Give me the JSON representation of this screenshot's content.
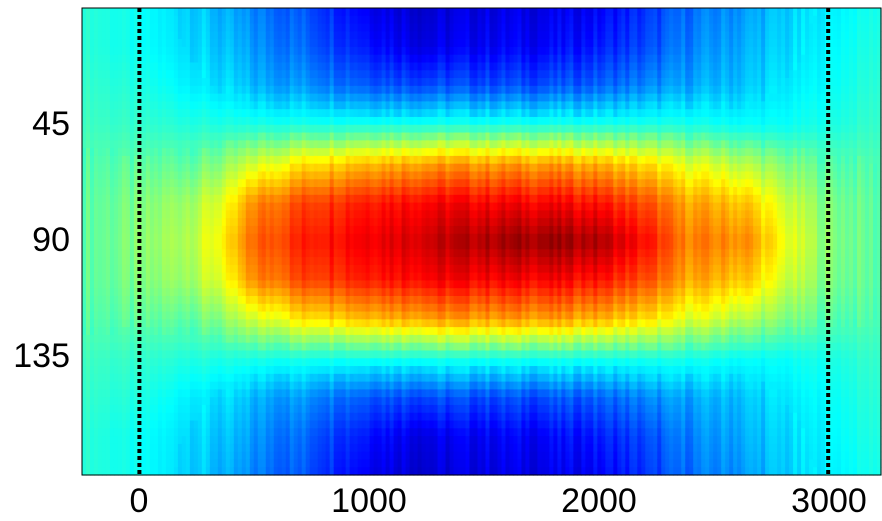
{
  "chart_data": {
    "type": "heatmap",
    "title": "",
    "xlabel": "",
    "ylabel": "",
    "xlim": [
      -250,
      3230
    ],
    "ylim": [
      180,
      0
    ],
    "colormap": "jet",
    "x_ticks": [
      {
        "value": 0,
        "label": "0"
      },
      {
        "value": 1000,
        "label": "1000"
      },
      {
        "value": 2000,
        "label": "2000"
      },
      {
        "value": 3000,
        "label": "3000"
      }
    ],
    "y_ticks": [
      {
        "value": 45,
        "label": "45"
      },
      {
        "value": 90,
        "label": "90"
      },
      {
        "value": 135,
        "label": "135"
      }
    ],
    "reference_lines": [
      {
        "axis": "x",
        "value": 0,
        "style": "dotted",
        "color": "#000000"
      },
      {
        "axis": "x",
        "value": 3000,
        "style": "dotted",
        "color": "#000000"
      }
    ],
    "x_samples": [
      -250,
      0,
      250,
      400,
      500,
      750,
      1000,
      1250,
      1500,
      1750,
      2000,
      2250,
      2350,
      2500,
      2650,
      2800,
      3000,
      3230
    ],
    "y_samples": [
      0,
      15,
      30,
      45,
      60,
      75,
      90,
      105,
      120,
      135,
      150,
      165,
      180
    ],
    "values": [
      [
        0.42,
        0.38,
        0.33,
        0.28,
        0.25,
        0.2,
        0.12,
        0.08,
        0.1,
        0.1,
        0.12,
        0.18,
        0.22,
        0.25,
        0.28,
        0.32,
        0.36,
        0.4
      ],
      [
        0.42,
        0.38,
        0.34,
        0.3,
        0.27,
        0.22,
        0.15,
        0.1,
        0.12,
        0.12,
        0.15,
        0.2,
        0.24,
        0.27,
        0.3,
        0.33,
        0.37,
        0.41
      ],
      [
        0.43,
        0.4,
        0.36,
        0.33,
        0.3,
        0.27,
        0.22,
        0.2,
        0.2,
        0.2,
        0.22,
        0.26,
        0.28,
        0.3,
        0.32,
        0.35,
        0.38,
        0.42
      ],
      [
        0.44,
        0.42,
        0.41,
        0.4,
        0.4,
        0.4,
        0.4,
        0.4,
        0.4,
        0.4,
        0.4,
        0.4,
        0.4,
        0.39,
        0.38,
        0.38,
        0.4,
        0.43
      ],
      [
        0.46,
        0.46,
        0.48,
        0.52,
        0.58,
        0.66,
        0.7,
        0.72,
        0.72,
        0.72,
        0.7,
        0.64,
        0.6,
        0.58,
        0.55,
        0.5,
        0.46,
        0.45
      ],
      [
        0.47,
        0.49,
        0.55,
        0.62,
        0.74,
        0.82,
        0.86,
        0.88,
        0.88,
        0.88,
        0.86,
        0.78,
        0.72,
        0.7,
        0.68,
        0.58,
        0.5,
        0.46
      ],
      [
        0.47,
        0.5,
        0.57,
        0.66,
        0.78,
        0.86,
        0.9,
        0.93,
        0.96,
        0.98,
        0.96,
        0.84,
        0.76,
        0.75,
        0.74,
        0.62,
        0.51,
        0.46
      ],
      [
        0.47,
        0.49,
        0.55,
        0.62,
        0.74,
        0.82,
        0.86,
        0.88,
        0.88,
        0.88,
        0.86,
        0.78,
        0.72,
        0.7,
        0.68,
        0.58,
        0.5,
        0.46
      ],
      [
        0.46,
        0.46,
        0.48,
        0.52,
        0.58,
        0.66,
        0.7,
        0.72,
        0.72,
        0.72,
        0.7,
        0.64,
        0.6,
        0.58,
        0.55,
        0.5,
        0.46,
        0.45
      ],
      [
        0.44,
        0.42,
        0.41,
        0.4,
        0.4,
        0.4,
        0.4,
        0.4,
        0.4,
        0.4,
        0.4,
        0.4,
        0.4,
        0.39,
        0.38,
        0.38,
        0.4,
        0.43
      ],
      [
        0.43,
        0.4,
        0.36,
        0.33,
        0.3,
        0.27,
        0.22,
        0.2,
        0.2,
        0.2,
        0.22,
        0.26,
        0.28,
        0.3,
        0.32,
        0.35,
        0.38,
        0.42
      ],
      [
        0.42,
        0.38,
        0.34,
        0.3,
        0.27,
        0.22,
        0.15,
        0.1,
        0.12,
        0.12,
        0.15,
        0.2,
        0.24,
        0.27,
        0.3,
        0.33,
        0.37,
        0.41
      ],
      [
        0.42,
        0.38,
        0.33,
        0.28,
        0.25,
        0.2,
        0.12,
        0.08,
        0.1,
        0.1,
        0.12,
        0.18,
        0.22,
        0.25,
        0.28,
        0.32,
        0.36,
        0.4
      ]
    ]
  }
}
